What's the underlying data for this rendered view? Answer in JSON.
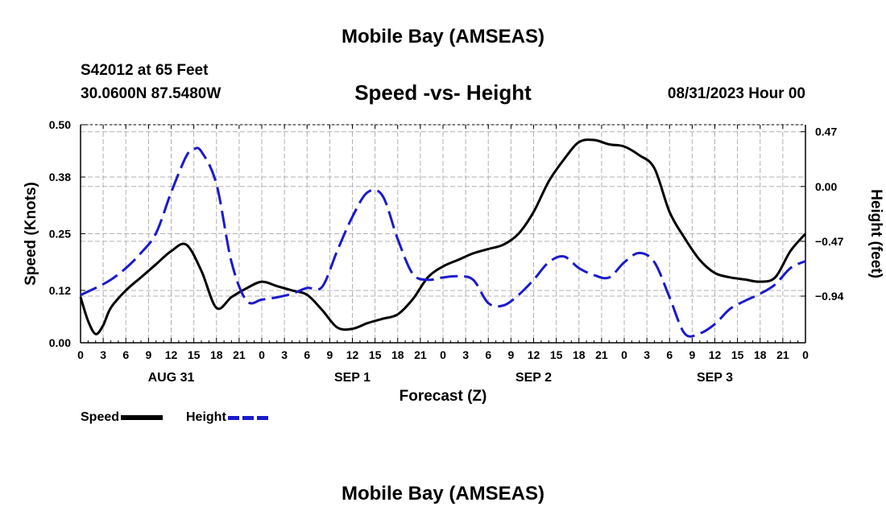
{
  "header": {
    "title": "Mobile Bay (AMSEAS)",
    "station": "S42012 at 65 Feet",
    "coords": "30.0600N  87.5480W",
    "chart_title": "Speed -vs- Height",
    "date": "08/31/2023 Hour 00"
  },
  "footer": {
    "title": "Mobile Bay (AMSEAS)"
  },
  "legend": {
    "speed": "Speed",
    "height": "Height"
  },
  "colors": {
    "speed": "#000000",
    "height": "#1a1acc",
    "grid": "#b0b0b0"
  },
  "chart_data": {
    "type": "line",
    "xlabel": "Forecast (Z)",
    "ylabel_left": "Speed (Knots)",
    "ylabel_right": "Height (feet)",
    "x_range_hours": [
      0,
      96
    ],
    "x_tick_labels": [
      "0",
      "3",
      "6",
      "9",
      "12",
      "15",
      "18",
      "21",
      "0",
      "3",
      "6",
      "9",
      "12",
      "15",
      "18",
      "21",
      "0",
      "3",
      "6",
      "9",
      "12",
      "15",
      "18",
      "21",
      "0",
      "3",
      "6",
      "9",
      "12",
      "15",
      "18",
      "21",
      "0"
    ],
    "day_labels": [
      {
        "hour": 12,
        "label": "AUG 31"
      },
      {
        "hour": 36,
        "label": "SEP 1"
      },
      {
        "hour": 60,
        "label": "SEP 2"
      },
      {
        "hour": 84,
        "label": "SEP 3"
      }
    ],
    "left_axis": {
      "ylim": [
        0,
        0.5
      ],
      "ticks": [
        0.0,
        0.12,
        0.25,
        0.38,
        0.5
      ],
      "tick_labels": [
        "0.00",
        "0.12",
        "0.25",
        "0.38",
        "0.50"
      ]
    },
    "right_axis": {
      "ylim": [
        -1.34,
        0.53
      ],
      "ticks": [
        -0.94,
        -0.47,
        0.0,
        0.47
      ],
      "tick_labels": [
        "−0.94",
        "−0.47",
        "0.00",
        "0.47"
      ]
    },
    "grid": true,
    "series": [
      {
        "name": "Speed",
        "axis": "left",
        "style": "solid",
        "x": [
          0,
          1,
          2,
          3,
          4,
          6,
          8,
          10,
          12,
          14,
          16,
          18,
          20,
          22,
          24,
          26,
          28,
          30,
          32,
          34,
          36,
          38,
          40,
          42,
          44,
          46,
          48,
          50,
          52,
          54,
          56,
          58,
          60,
          62,
          64,
          66,
          68,
          70,
          72,
          74,
          76,
          78,
          80,
          82,
          84,
          86,
          88,
          90,
          92,
          94,
          96
        ],
        "values": [
          0.105,
          0.05,
          0.02,
          0.04,
          0.08,
          0.12,
          0.15,
          0.18,
          0.21,
          0.225,
          0.165,
          0.08,
          0.105,
          0.125,
          0.14,
          0.13,
          0.12,
          0.11,
          0.075,
          0.035,
          0.032,
          0.045,
          0.055,
          0.065,
          0.1,
          0.15,
          0.175,
          0.19,
          0.205,
          0.215,
          0.225,
          0.25,
          0.3,
          0.37,
          0.42,
          0.46,
          0.465,
          0.455,
          0.45,
          0.43,
          0.4,
          0.3,
          0.24,
          0.19,
          0.16,
          0.15,
          0.145,
          0.14,
          0.15,
          0.21,
          0.25
        ]
      },
      {
        "name": "Height",
        "axis": "right",
        "style": "dashed",
        "x": [
          0,
          2,
          4,
          6,
          8,
          10,
          12,
          14,
          15,
          16,
          18,
          20,
          22,
          24,
          26,
          28,
          30,
          32,
          34,
          36,
          38,
          40,
          42,
          44,
          46,
          48,
          50,
          52,
          54,
          56,
          58,
          60,
          62,
          64,
          66,
          68,
          70,
          72,
          74,
          76,
          78,
          80,
          82,
          84,
          86,
          88,
          90,
          92,
          94,
          96
        ],
        "values": [
          -0.93,
          -0.87,
          -0.8,
          -0.7,
          -0.57,
          -0.4,
          -0.05,
          0.26,
          0.32,
          0.3,
          0.02,
          -0.65,
          -0.98,
          -0.97,
          -0.95,
          -0.92,
          -0.87,
          -0.86,
          -0.55,
          -0.26,
          -0.05,
          -0.08,
          -0.45,
          -0.75,
          -0.8,
          -0.78,
          -0.77,
          -0.8,
          -1.0,
          -1.02,
          -0.93,
          -0.8,
          -0.65,
          -0.6,
          -0.7,
          -0.76,
          -0.78,
          -0.65,
          -0.57,
          -0.65,
          -0.95,
          -1.26,
          -1.26,
          -1.18,
          -1.05,
          -0.98,
          -0.92,
          -0.84,
          -0.7,
          -0.64
        ]
      }
    ]
  }
}
